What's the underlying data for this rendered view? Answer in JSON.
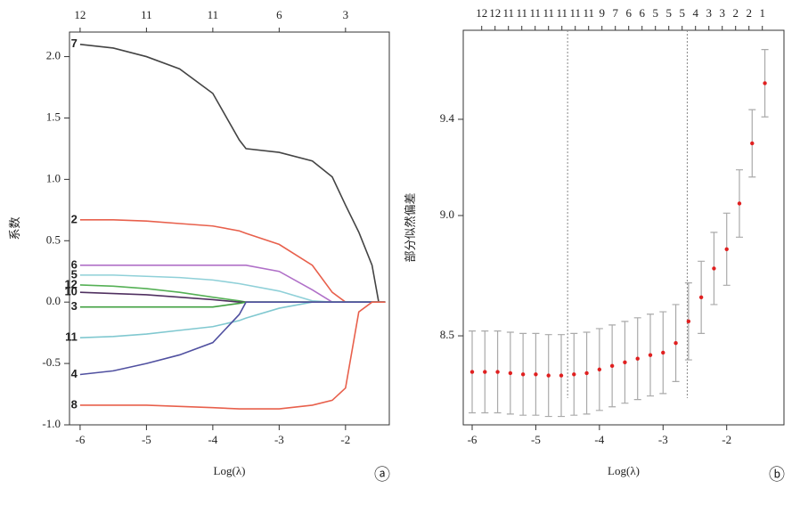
{
  "chart_data": [
    {
      "type": "line",
      "xlabel": "Log(λ)",
      "ylabel": "系数",
      "panel": "ⓐ",
      "x": [
        -6,
        -5.5,
        -5,
        -4.5,
        -4,
        -3.6,
        -3.5,
        -3,
        -2.5,
        -2.2,
        -2,
        -1.8,
        -1.6,
        -1.5,
        -1.4
      ],
      "series": [
        {
          "name": "7",
          "color": "#444444",
          "values": [
            2.1,
            2.07,
            2.0,
            1.9,
            1.7,
            1.32,
            1.25,
            1.22,
            1.15,
            1.02,
            0.79,
            0.57,
            0.3,
            0,
            0
          ]
        },
        {
          "name": "2",
          "color": "#e8604c",
          "values": [
            0.67,
            0.67,
            0.66,
            0.64,
            0.62,
            0.58,
            0.56,
            0.47,
            0.3,
            0.08,
            0,
            0,
            0,
            0,
            0
          ]
        },
        {
          "name": "6",
          "color": "#b070c8",
          "values": [
            0.3,
            0.3,
            0.3,
            0.3,
            0.3,
            0.3,
            0.3,
            0.25,
            0.1,
            0,
            0,
            0,
            0,
            0,
            0
          ]
        },
        {
          "name": "5",
          "color": "#8fd0d8",
          "values": [
            0.22,
            0.22,
            0.21,
            0.2,
            0.18,
            0.15,
            0.14,
            0.09,
            0.01,
            0,
            0,
            0,
            0,
            0,
            0
          ]
        },
        {
          "name": "12",
          "color": "#55b055",
          "values": [
            0.14,
            0.13,
            0.11,
            0.08,
            0.04,
            0.01,
            0,
            0,
            0,
            0,
            0,
            0,
            0,
            0,
            0
          ]
        },
        {
          "name": "10",
          "color": "#503060",
          "values": [
            0.08,
            0.07,
            0.06,
            0.04,
            0.02,
            0,
            0,
            0,
            0,
            0,
            0,
            0,
            0,
            0,
            0
          ]
        },
        {
          "name": "3",
          "color": "#40a040",
          "values": [
            -0.04,
            -0.04,
            -0.04,
            -0.04,
            -0.04,
            -0.01,
            0,
            0,
            0,
            0,
            0,
            0,
            0,
            0,
            0
          ]
        },
        {
          "name": "11",
          "color": "#80c8d0",
          "values": [
            -0.29,
            -0.28,
            -0.26,
            -0.23,
            -0.2,
            -0.15,
            -0.13,
            -0.05,
            0,
            0,
            0,
            0,
            0,
            0,
            0
          ]
        },
        {
          "name": "4",
          "color": "#5050a0",
          "values": [
            -0.59,
            -0.56,
            -0.5,
            -0.43,
            -0.33,
            -0.1,
            0,
            0,
            0,
            0,
            0,
            0,
            0,
            0,
            0
          ]
        },
        {
          "name": "8",
          "color": "#e8604c",
          "values": [
            -0.84,
            -0.84,
            -0.84,
            -0.85,
            -0.86,
            -0.87,
            -0.87,
            -0.87,
            -0.84,
            -0.8,
            -0.7,
            -0.08,
            0,
            0,
            0
          ]
        }
      ],
      "xlim": [
        -6.16,
        -1.34
      ],
      "ylim": [
        -1.0,
        2.2
      ],
      "xticks": [
        -6,
        -5,
        -4,
        -3,
        -2
      ],
      "yticks": [
        {
          "value": -1,
          "label": "-1.0"
        },
        -0.5,
        {
          "value": 0,
          "label": "0.0"
        },
        0.5,
        {
          "value": 1,
          "label": "1.0"
        },
        1.5,
        {
          "value": 2,
          "label": "2.0"
        }
      ],
      "top_ticks": [
        {
          "value": -6,
          "label": "12"
        },
        {
          "value": -5,
          "label": "11"
        },
        {
          "value": -4,
          "label": "11"
        },
        {
          "value": -3,
          "label": "6"
        },
        {
          "value": -2,
          "label": "3"
        }
      ]
    },
    {
      "type": "errorbar",
      "xlabel": "Log(λ)",
      "ylabel": "部分似然偏差",
      "panel": "ⓑ",
      "color": "#e02020",
      "error_color": "#aaaaaa",
      "x": [
        -6,
        -5.8,
        -5.6,
        -5.4,
        -5.2,
        -5.0,
        -4.8,
        -4.6,
        -4.4,
        -4.2,
        -4.0,
        -3.8,
        -3.6,
        -3.4,
        -3.2,
        -3.0,
        -2.8,
        -2.6,
        -2.4,
        -2.2,
        -2.0,
        -1.8,
        -1.6,
        -1.4
      ],
      "values": [
        8.35,
        8.35,
        8.35,
        8.345,
        8.34,
        8.34,
        8.335,
        8.335,
        8.34,
        8.345,
        8.36,
        8.375,
        8.39,
        8.405,
        8.42,
        8.43,
        8.47,
        8.56,
        8.66,
        8.78,
        8.86,
        9.05,
        9.3,
        9.55
      ],
      "errors": [
        0.17,
        0.17,
        0.17,
        0.17,
        0.17,
        0.17,
        0.17,
        0.17,
        0.17,
        0.17,
        0.17,
        0.17,
        0.17,
        0.17,
        0.17,
        0.17,
        0.16,
        0.16,
        0.15,
        0.15,
        0.15,
        0.14,
        0.14,
        0.14
      ],
      "vlines": [
        -4.5,
        -2.62
      ],
      "xlim": [
        -6.14,
        -1.1
      ],
      "ylim": [
        8.13,
        9.77
      ],
      "xticks": [
        -6,
        -5,
        -4,
        -3,
        -2
      ],
      "yticks": [
        8.5,
        {
          "value": 9,
          "label": "9.0"
        },
        9.4
      ],
      "top_ticks": [
        {
          "value": -5.85,
          "label": "12"
        },
        {
          "value": -5.64,
          "label": "12"
        },
        {
          "value": -5.43,
          "label": "11"
        },
        {
          "value": -5.22,
          "label": "11"
        },
        {
          "value": -5.01,
          "label": "11"
        },
        {
          "value": -4.8,
          "label": "11"
        },
        {
          "value": -4.59,
          "label": "11"
        },
        {
          "value": -4.38,
          "label": "11"
        },
        {
          "value": -4.17,
          "label": "11"
        },
        {
          "value": -3.96,
          "label": "9"
        },
        {
          "value": -3.75,
          "label": "7"
        },
        {
          "value": -3.54,
          "label": "6"
        },
        {
          "value": -3.33,
          "label": "6"
        },
        {
          "value": -3.12,
          "label": "5"
        },
        {
          "value": -2.91,
          "label": "5"
        },
        {
          "value": -2.7,
          "label": "5"
        },
        {
          "value": -2.49,
          "label": "4"
        },
        {
          "value": -2.28,
          "label": "3"
        },
        {
          "value": -2.07,
          "label": "3"
        },
        {
          "value": -1.86,
          "label": "2"
        },
        {
          "value": -1.65,
          "label": "2"
        },
        {
          "value": -1.44,
          "label": "1"
        }
      ]
    }
  ]
}
